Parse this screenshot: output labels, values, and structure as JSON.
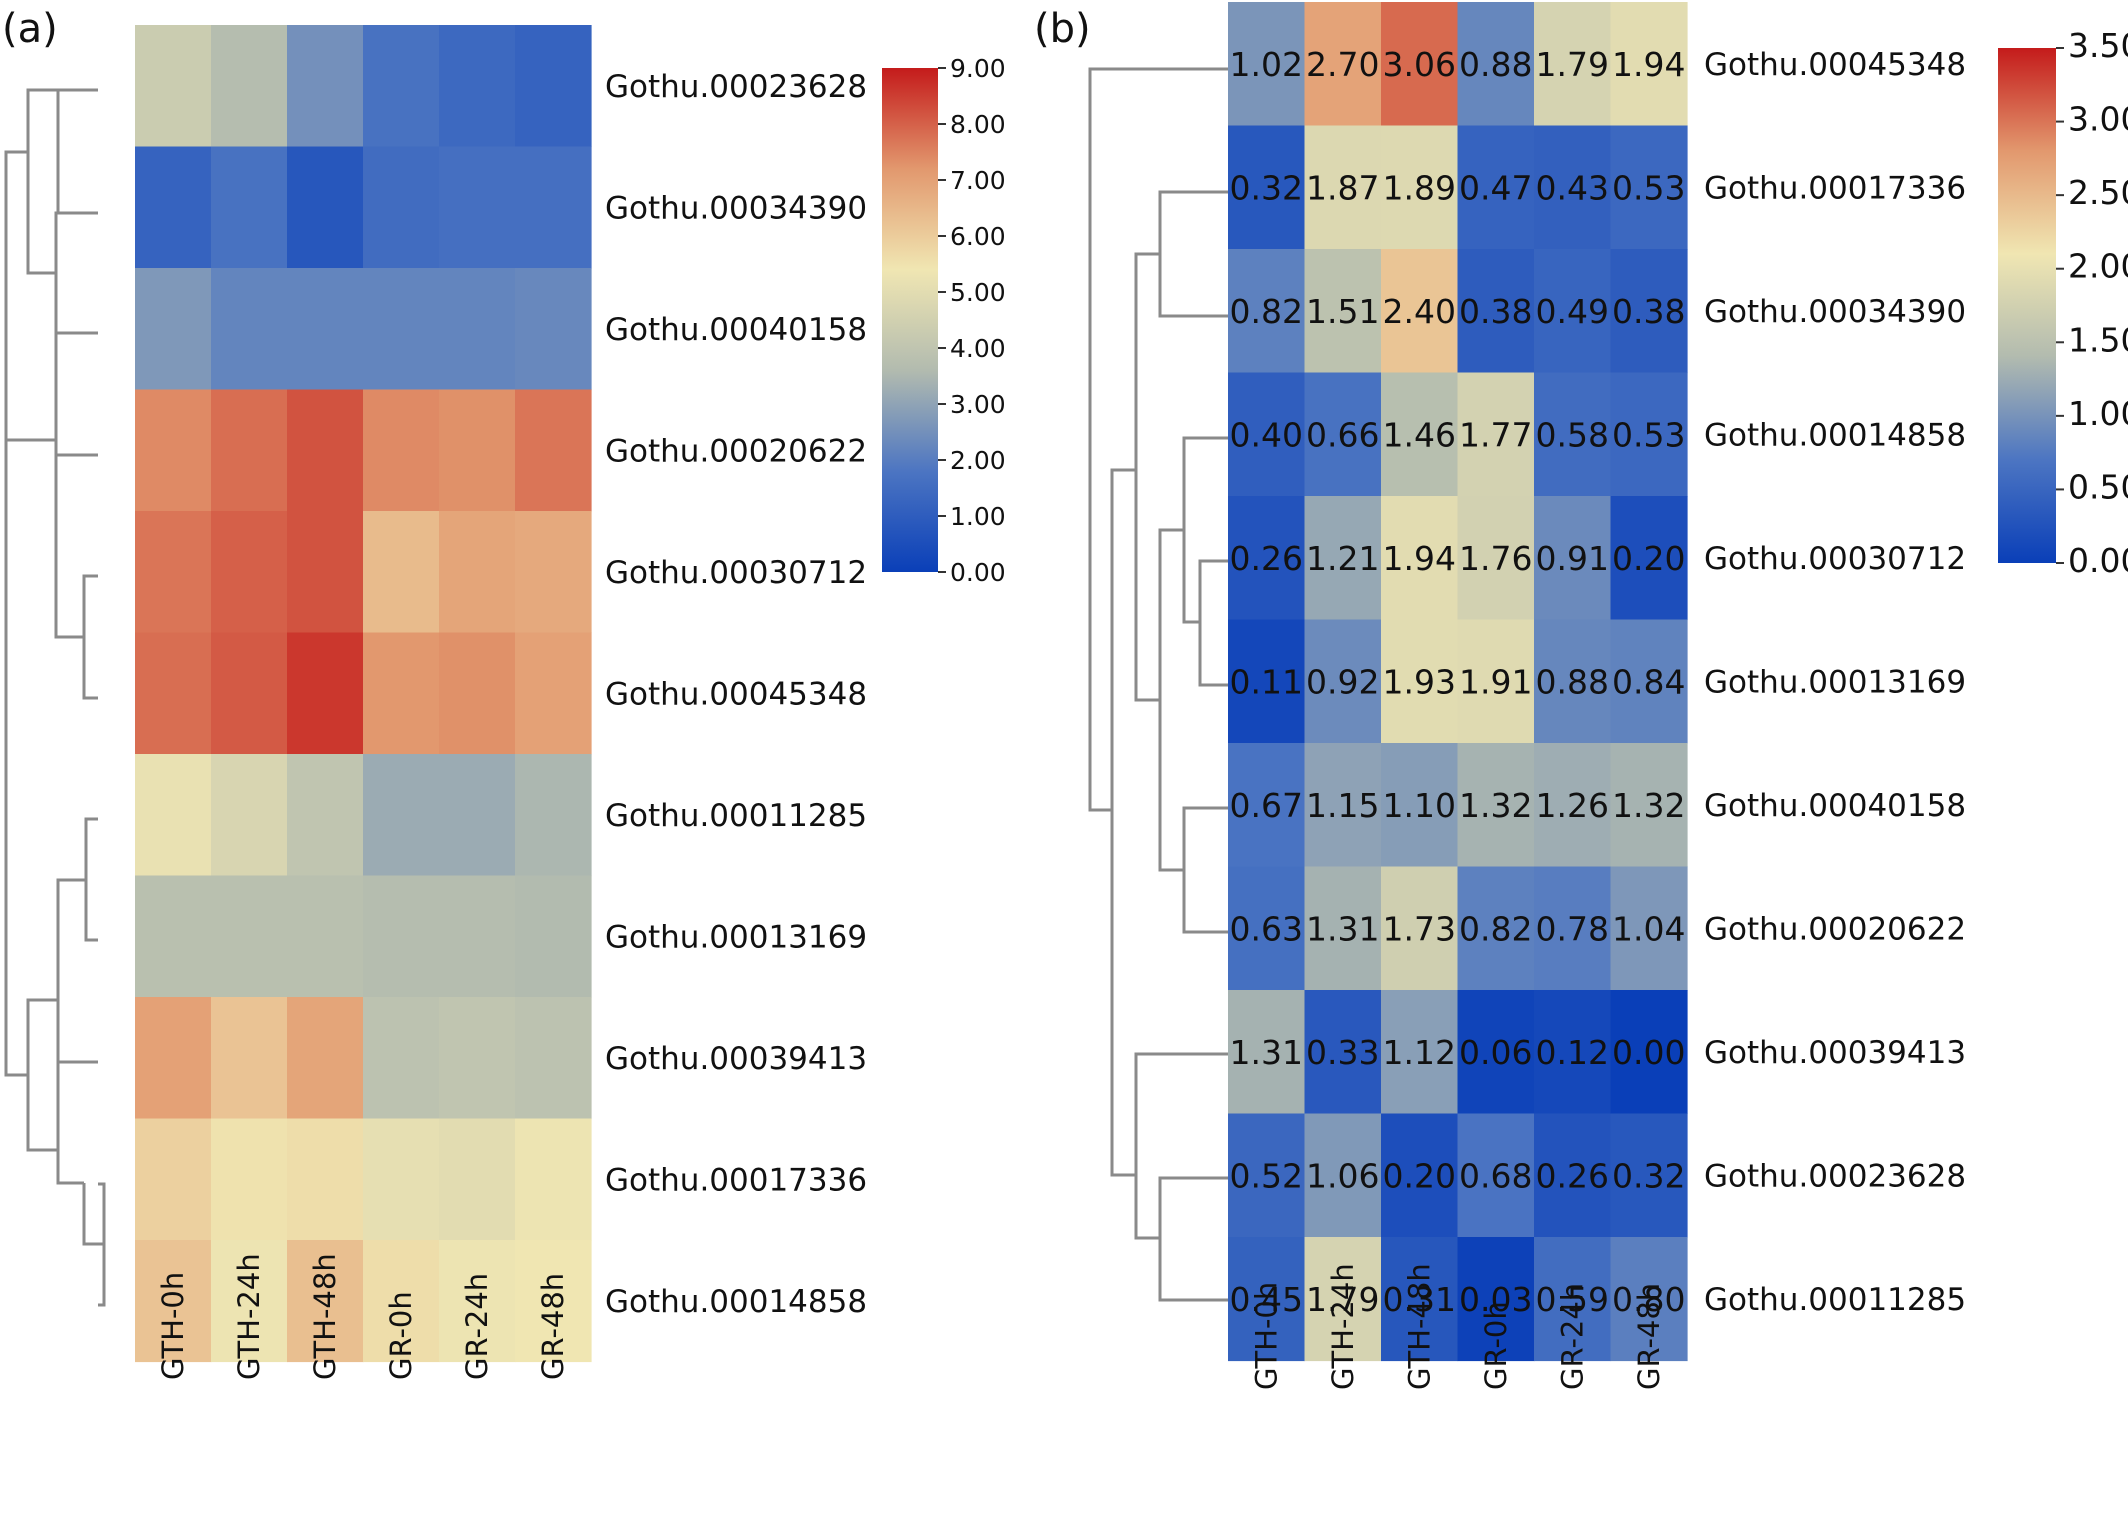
{
  "chart_data": [
    {
      "type": "heatmap",
      "panel_label": "(a)",
      "title": "",
      "xlabel": "",
      "ylabel": "",
      "columns": [
        "GTH-0h",
        "GTH-24h",
        "GTH-48h",
        "GR-0h",
        "GR-24h",
        "GR-48h"
      ],
      "rows": [
        "Gothu.00023628",
        "Gothu.00034390",
        "Gothu.00040158",
        "Gothu.00020622",
        "Gothu.00030712",
        "Gothu.00045348",
        "Gothu.00011285",
        "Gothu.00013169",
        "Gothu.00039413",
        "Gothu.00017336",
        "Gothu.00014858"
      ],
      "values": [
        [
          4.3,
          3.7,
          2.5,
          1.7,
          1.4,
          1.2
        ],
        [
          1.2,
          1.7,
          0.8,
          1.5,
          1.6,
          1.6
        ],
        [
          2.7,
          2.2,
          2.2,
          2.2,
          2.2,
          2.3
        ],
        [
          7.4,
          7.8,
          8.2,
          7.4,
          7.3,
          7.7
        ],
        [
          7.7,
          8.0,
          8.2,
          6.4,
          6.9,
          6.8
        ],
        [
          7.8,
          8.1,
          8.6,
          7.2,
          7.3,
          7.0
        ],
        [
          5.2,
          4.7,
          4.0,
          3.2,
          3.2,
          3.5
        ],
        [
          3.8,
          3.8,
          3.8,
          3.7,
          3.7,
          3.6
        ],
        [
          7.0,
          6.2,
          6.9,
          3.9,
          4.0,
          3.9
        ],
        [
          5.9,
          5.5,
          5.6,
          5.1,
          5.0,
          5.3
        ],
        [
          6.2,
          5.3,
          6.3,
          5.6,
          5.3,
          5.4
        ]
      ],
      "show_values": false,
      "colorbar": {
        "min": 0,
        "max": 9,
        "ticks": [
          "0.00",
          "1.00",
          "2.00",
          "3.00",
          "4.00",
          "5.00",
          "6.00",
          "7.00",
          "8.00",
          "9.00"
        ],
        "colors": [
          "#0a3fb8",
          "#4c75c2",
          "#b2bbaf",
          "#f0e6b2",
          "#e2986e",
          "#c41b1b"
        ]
      },
      "dendrogram": "row clustering tree (left side)"
    },
    {
      "type": "heatmap",
      "panel_label": "(b)",
      "title": "",
      "xlabel": "",
      "ylabel": "",
      "columns": [
        "GTH-0h",
        "GTH-24h",
        "GTH-48h",
        "GR-0h",
        "GR-24h",
        "GR-48h"
      ],
      "rows": [
        "Gothu.00045348",
        "Gothu.00017336",
        "Gothu.00034390",
        "Gothu.00014858",
        "Gothu.00030712",
        "Gothu.00013169",
        "Gothu.00040158",
        "Gothu.00020622",
        "Gothu.00039413",
        "Gothu.00023628",
        "Gothu.00011285"
      ],
      "values": [
        [
          1.02,
          2.7,
          3.06,
          0.88,
          1.79,
          1.94
        ],
        [
          0.32,
          1.87,
          1.89,
          0.47,
          0.43,
          0.53
        ],
        [
          0.82,
          1.51,
          2.4,
          0.38,
          0.49,
          0.38
        ],
        [
          0.4,
          0.66,
          1.46,
          1.77,
          0.58,
          0.53
        ],
        [
          0.26,
          1.21,
          1.94,
          1.76,
          0.91,
          0.2
        ],
        [
          0.11,
          0.92,
          1.93,
          1.91,
          0.88,
          0.84
        ],
        [
          0.67,
          1.15,
          1.1,
          1.32,
          1.26,
          1.32
        ],
        [
          0.63,
          1.31,
          1.73,
          0.82,
          0.78,
          1.04
        ],
        [
          1.31,
          0.33,
          1.12,
          0.06,
          0.12,
          0.0
        ],
        [
          0.52,
          1.06,
          0.2,
          0.68,
          0.26,
          0.32
        ],
        [
          0.45,
          1.79,
          0.31,
          0.03,
          0.59,
          0.8
        ]
      ],
      "value_labels": [
        [
          "1.02",
          "2.70",
          "3.06",
          "0.88",
          "1.79",
          "1.94"
        ],
        [
          "0.32",
          "1.87",
          "1.89",
          "0.47",
          "0.43",
          "0.53"
        ],
        [
          "0.82",
          "1.51",
          "2.40",
          "0.38",
          "0.49",
          "0.38"
        ],
        [
          "0.40",
          "0.66",
          "1.46",
          "1.77",
          "0.58",
          "0.53"
        ],
        [
          "0.26",
          "1.21",
          "1.94",
          "1.76",
          "0.91",
          "0.20"
        ],
        [
          "0.11",
          "0.92",
          "1.93",
          "1.91",
          "0.88",
          "0.84"
        ],
        [
          "0.67",
          "1.15",
          "1.10",
          "1.32",
          "1.26",
          "1.32"
        ],
        [
          "0.63",
          "1.31",
          "1.73",
          "0.82",
          "0.78",
          "1.04"
        ],
        [
          "1.31",
          "0.33",
          "1.12",
          "0.06",
          "0.12",
          "0.00"
        ],
        [
          "0.52",
          "1.06",
          "0.20",
          "0.68",
          "0.26",
          "0.32"
        ],
        [
          "0.45",
          "1.79",
          "0.31",
          "0.03",
          "0.59",
          "0.80"
        ]
      ],
      "show_values": true,
      "colorbar": {
        "min": 0,
        "max": 3.5,
        "ticks": [
          "0.00",
          "0.50",
          "1.00",
          "1.50",
          "2.00",
          "2.50",
          "3.00",
          "3.50"
        ],
        "colors": [
          "#0a3fb8",
          "#4c75c2",
          "#b2bbaf",
          "#f0e6b2",
          "#e2986e",
          "#c41b1b"
        ]
      },
      "dendrogram": "row clustering tree (left side)"
    }
  ]
}
